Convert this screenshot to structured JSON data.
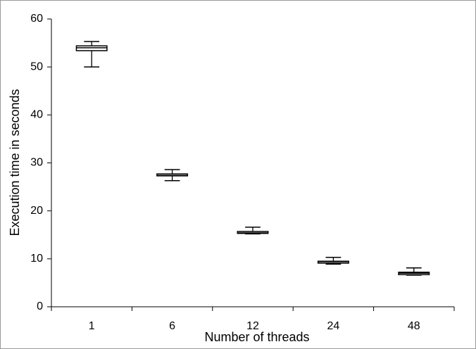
{
  "chart_data": {
    "type": "box",
    "categories": [
      "1",
      "6",
      "12",
      "24",
      "48"
    ],
    "series": [
      {
        "min": [
          50.0,
          26.3,
          15.2,
          8.9,
          6.6
        ],
        "q1": [
          53.4,
          27.3,
          15.3,
          9.1,
          6.7
        ],
        "median": [
          54.0,
          27.4,
          15.4,
          9.4,
          7.0
        ],
        "q3": [
          54.4,
          27.7,
          15.7,
          9.5,
          7.2
        ],
        "max": [
          55.3,
          28.6,
          16.6,
          10.3,
          8.1
        ],
        "color": "#ffffff"
      }
    ],
    "xlabel": "Number of threads",
    "ylabel": "Execution time in seconds",
    "ylim": [
      0,
      60
    ],
    "yticks": [
      0,
      10,
      20,
      30,
      40,
      50,
      60
    ],
    "grid": false
  }
}
